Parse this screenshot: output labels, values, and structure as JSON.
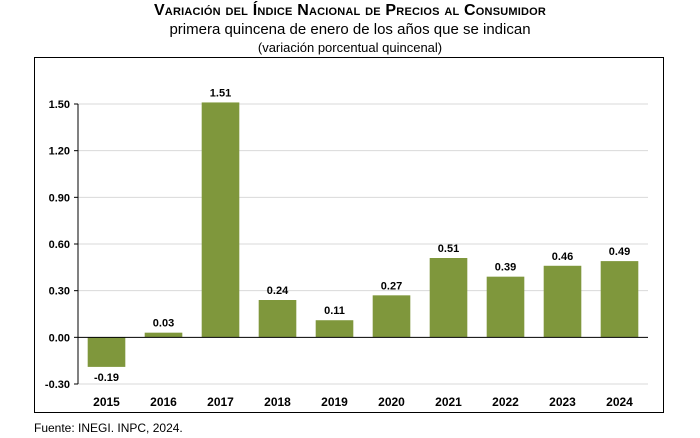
{
  "header": {
    "title": "Variación del Índice Nacional de Precios al Consumidor",
    "subtitle": "primera quincena de enero de los años que se indican",
    "subtitle2": "(variación porcentual quincenal)"
  },
  "footer": {
    "source_prefix": "Fuente: ",
    "source_org": "INEGI. INPC",
    "source_year": ", 2024."
  },
  "colors": {
    "bar": "#7f973c",
    "grid": "#d9d9d9",
    "axis": "#000000"
  },
  "chart_data": {
    "type": "bar",
    "title": "Variación del Índice Nacional de Precios al Consumidor",
    "subtitle": "primera quincena de enero de los años que se indican",
    "categories": [
      "2015",
      "2016",
      "2017",
      "2018",
      "2019",
      "2020",
      "2021",
      "2022",
      "2023",
      "2024"
    ],
    "values": [
      -0.19,
      0.03,
      1.51,
      0.24,
      0.11,
      0.27,
      0.51,
      0.39,
      0.46,
      0.49
    ],
    "data_labels": [
      "-0.19",
      "0.03",
      "1.51",
      "0.24",
      "0.11",
      "0.27",
      "0.51",
      "0.39",
      "0.46",
      "0.49"
    ],
    "ylim": [
      -0.3,
      1.5
    ],
    "yticks": [
      -0.3,
      0.0,
      0.3,
      0.6,
      0.9,
      1.2,
      1.5
    ],
    "ytick_labels": [
      "-0.30",
      "0.00",
      "0.30",
      "0.60",
      "0.90",
      "1.20",
      "1.50"
    ],
    "grid": true,
    "legend": "none"
  }
}
